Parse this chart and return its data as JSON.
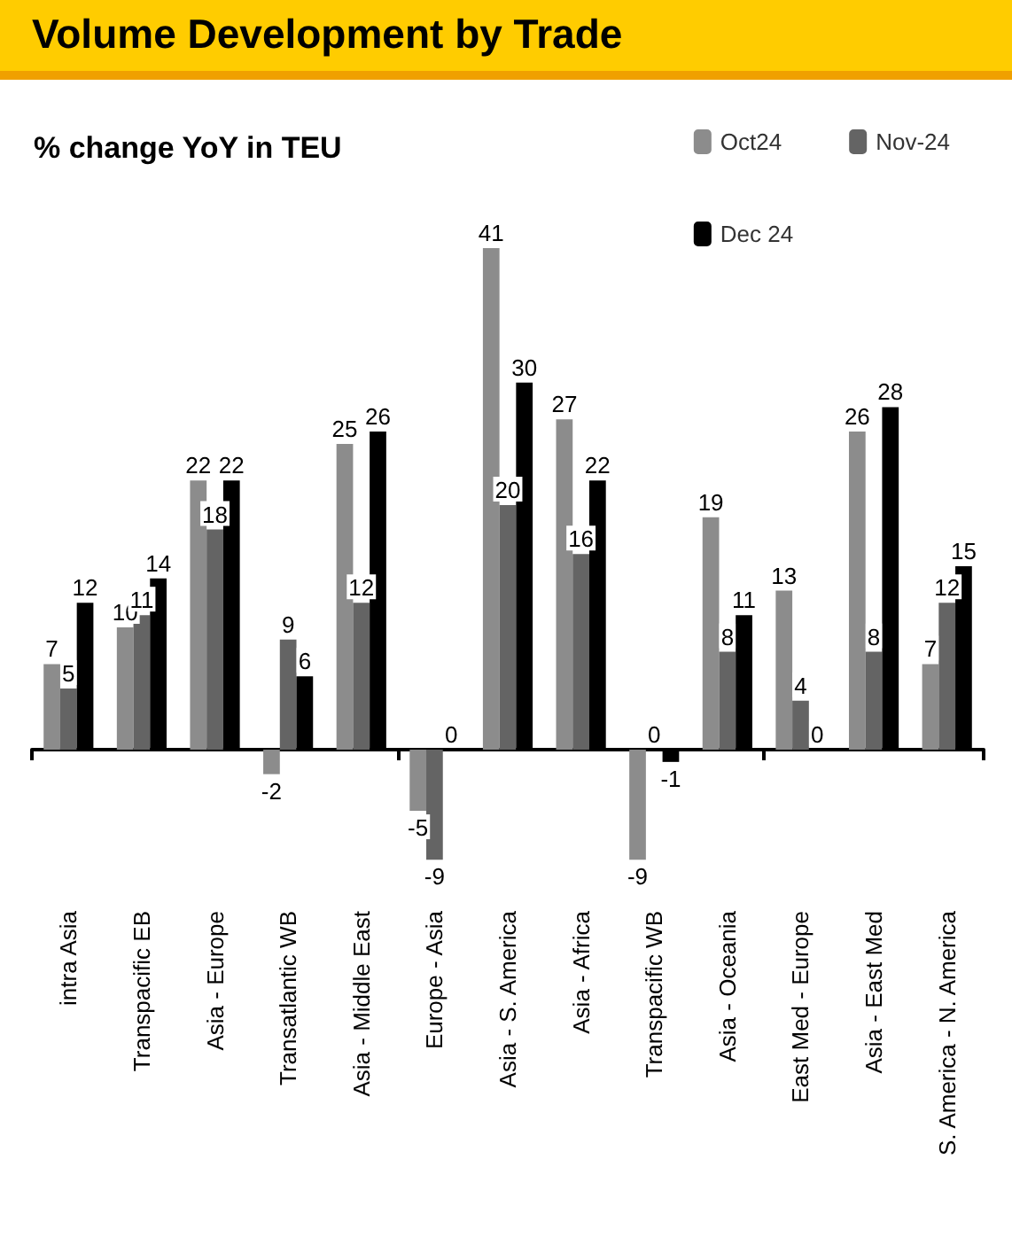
{
  "chart_data": {
    "type": "bar",
    "title": "Volume Development by Trade",
    "subtitle": "% change YoY in TEU",
    "categories": [
      "intra Asia",
      "Transpacific EB",
      "Asia - Europe",
      "Transatlantic WB",
      "Asia - Middle East",
      "Europe - Asia",
      "Asia - S. America",
      "Asia - Africa",
      "Transpacific WB",
      "Asia - Oceania",
      "East Med - Europe",
      "Asia - East Med",
      "S. America - N. America"
    ],
    "series": [
      {
        "name": "Oct24",
        "color": "#8c8c8c",
        "values": [
          7,
          10,
          22,
          -2,
          25,
          -5,
          41,
          27,
          -9,
          19,
          13,
          26,
          7
        ]
      },
      {
        "name": "Nov-24",
        "color": "#646464",
        "values": [
          5,
          11,
          18,
          9,
          12,
          -9,
          20,
          16,
          0,
          8,
          4,
          8,
          12
        ]
      },
      {
        "name": "Dec 24",
        "color": "#000000",
        "values": [
          12,
          14,
          22,
          6,
          26,
          0,
          30,
          22,
          -1,
          11,
          0,
          28,
          15
        ]
      }
    ],
    "data_labels": true,
    "legend": "top right"
  }
}
